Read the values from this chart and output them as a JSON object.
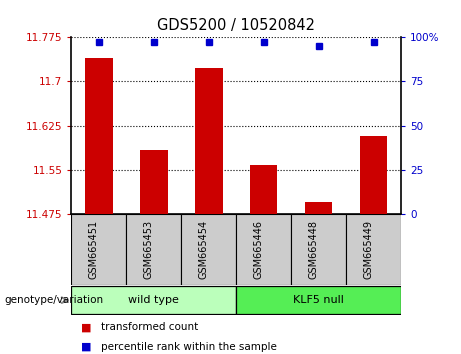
{
  "title": "GDS5200 / 10520842",
  "samples": [
    "GSM665451",
    "GSM665453",
    "GSM665454",
    "GSM665446",
    "GSM665448",
    "GSM665449"
  ],
  "bar_values": [
    11.74,
    11.583,
    11.722,
    11.558,
    11.495,
    11.608
  ],
  "percentile_values": [
    97,
    97,
    97,
    97,
    95,
    97
  ],
  "ymin": 11.475,
  "ymax": 11.775,
  "yticks": [
    11.475,
    11.55,
    11.625,
    11.7,
    11.775
  ],
  "ytick_labels": [
    "11.475",
    "11.55",
    "11.625",
    "11.7",
    "11.775"
  ],
  "right_yticks": [
    0,
    25,
    50,
    75,
    100
  ],
  "right_ytick_labels": [
    "0",
    "25",
    "50",
    "75",
    "100%"
  ],
  "bar_color": "#cc0000",
  "dot_color": "#0000cc",
  "groups": [
    {
      "label": "wild type",
      "start": 0,
      "end": 3,
      "color": "#bbffbb"
    },
    {
      "label": "KLF5 null",
      "start": 3,
      "end": 6,
      "color": "#55ee55"
    }
  ],
  "group_label_prefix": "genotype/variation",
  "legend_items": [
    {
      "label": "transformed count",
      "color": "#cc0000"
    },
    {
      "label": "percentile rank within the sample",
      "color": "#0000cc"
    }
  ],
  "grid_color": "black",
  "left_tick_color": "#cc0000",
  "right_tick_color": "#0000cc",
  "xlabel_bg_color": "#cccccc",
  "xlabel_border_color": "#000000",
  "bar_width": 0.5
}
